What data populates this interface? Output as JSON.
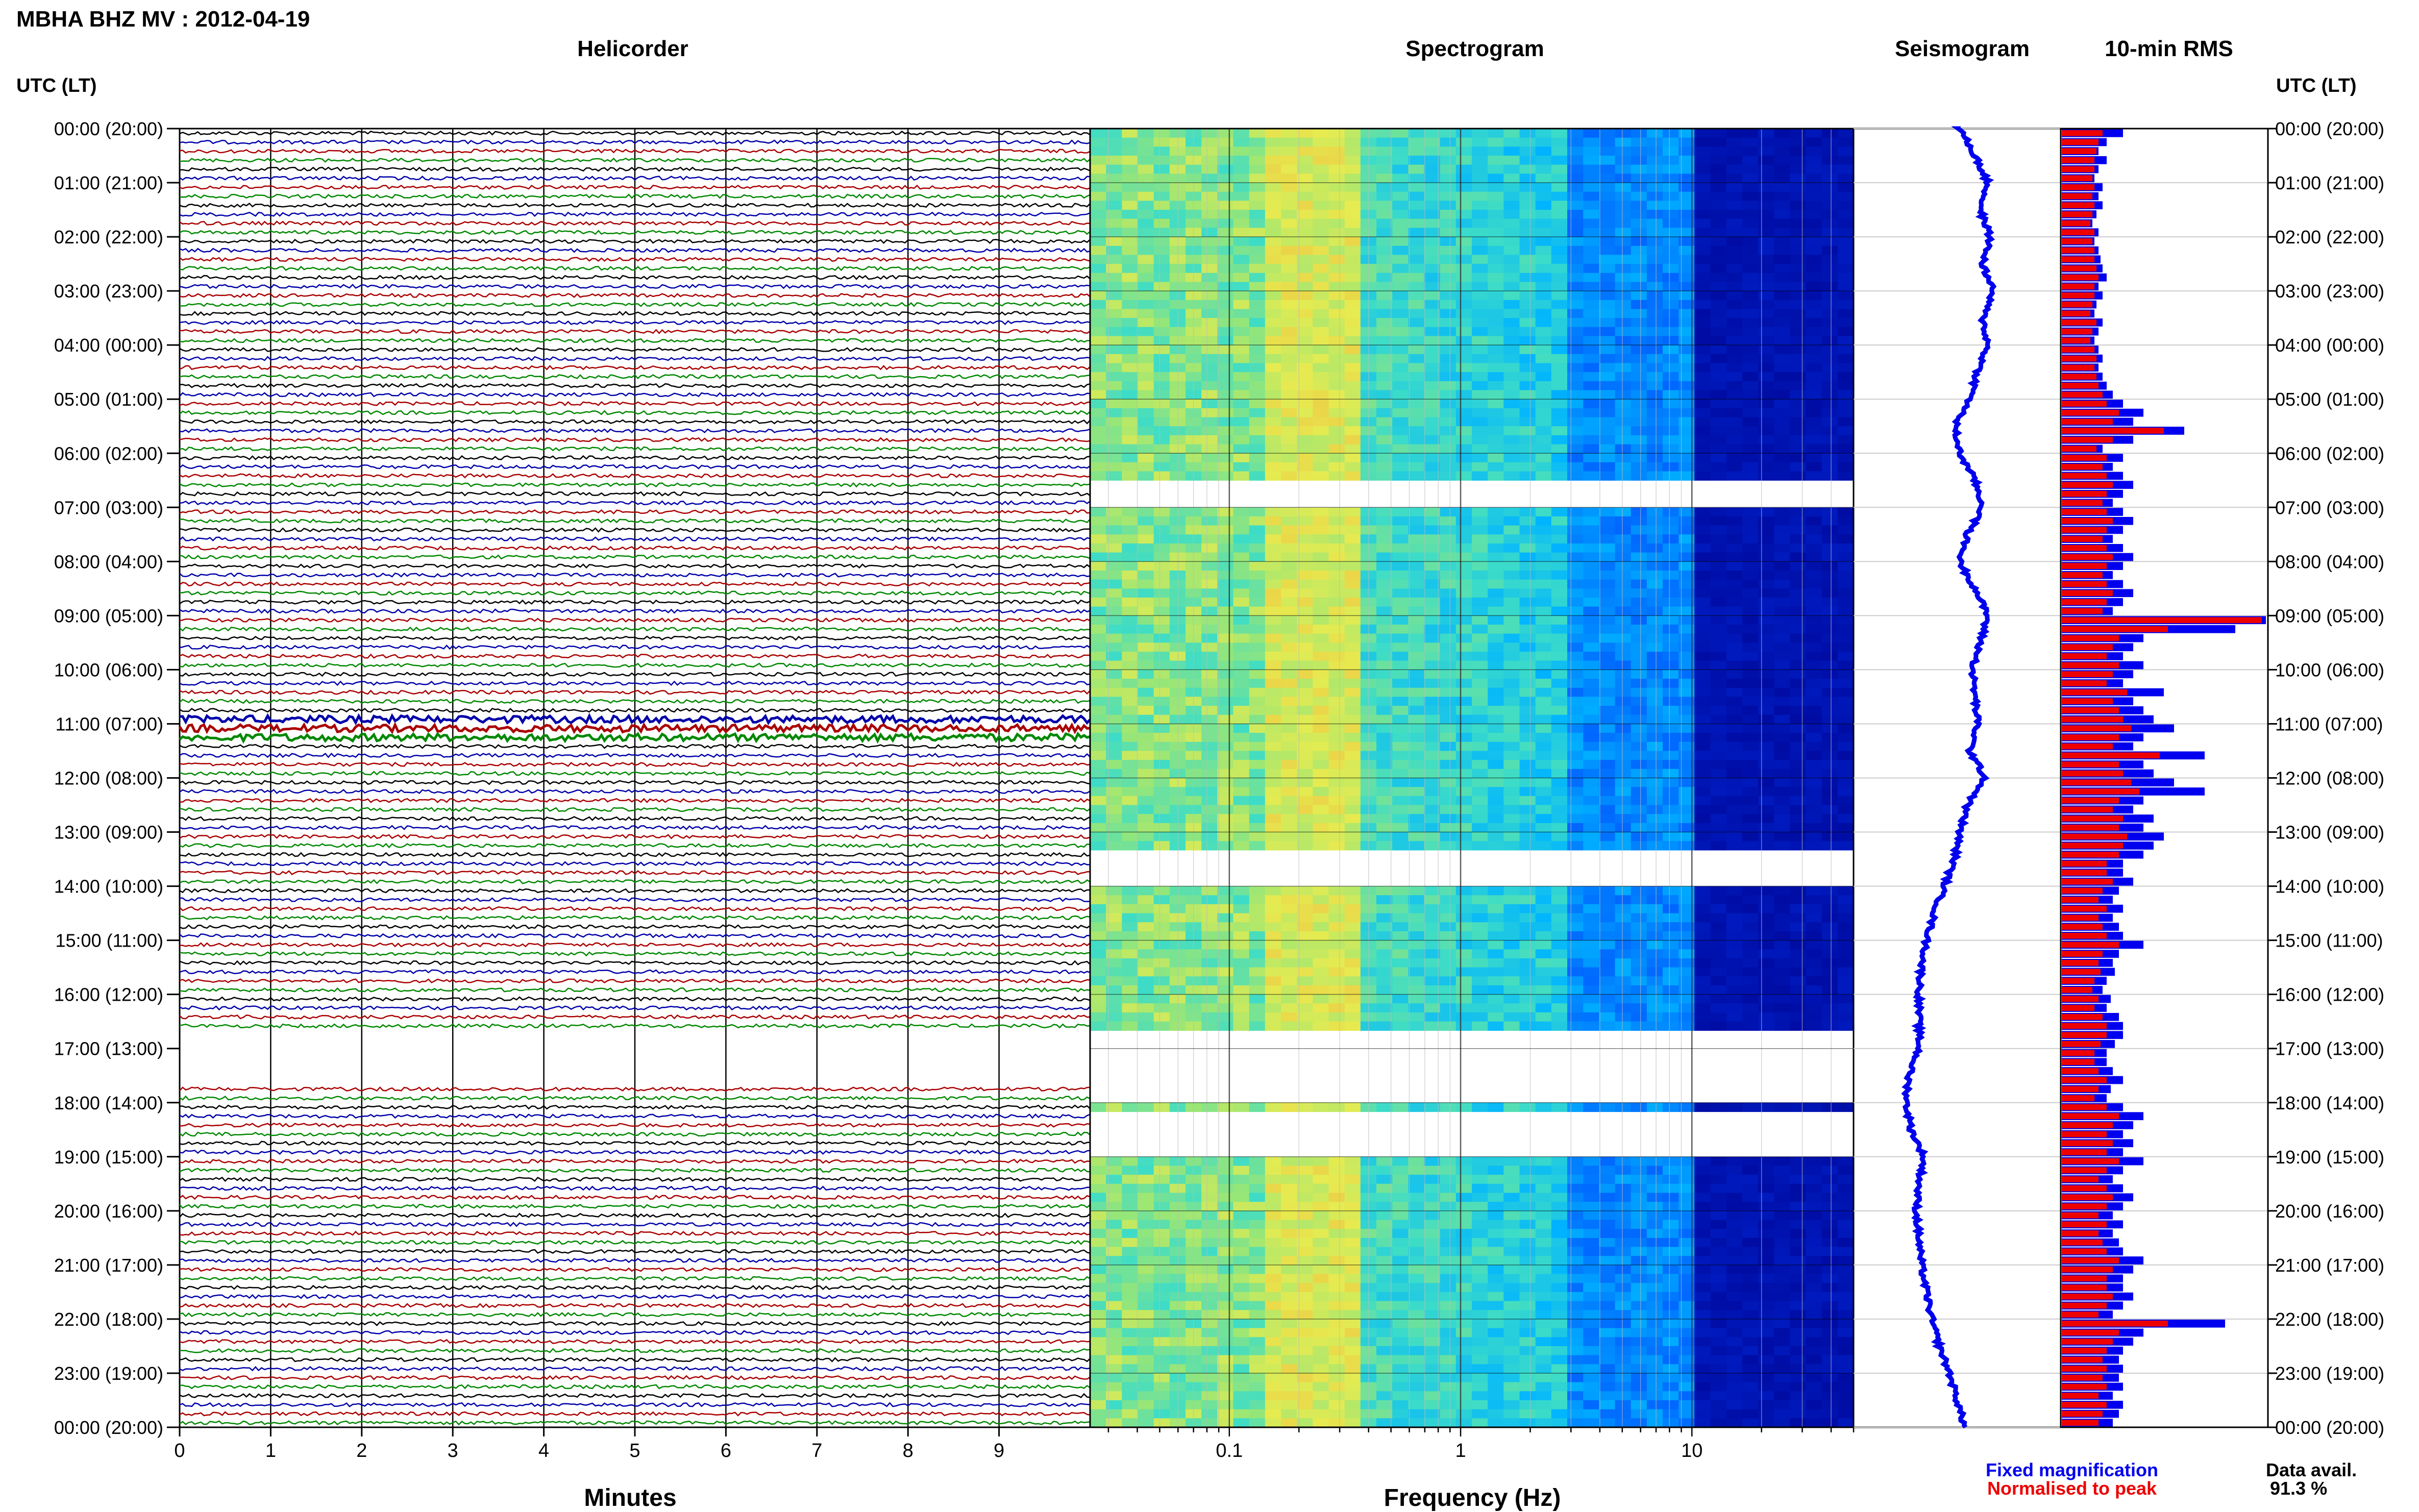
{
  "title": "MBHA BHZ MV : 2012-04-19",
  "panels": {
    "helicorder": {
      "title": "Helicorder",
      "xlabel": "Minutes",
      "xticks": [
        "0",
        "1",
        "2",
        "3",
        "4",
        "5",
        "6",
        "7",
        "8",
        "9"
      ]
    },
    "spectrogram": {
      "title": "Spectrogram",
      "xlabel": "Frequency (Hz)",
      "xticks": [
        "0.1",
        "1",
        "10"
      ],
      "x_scale": "log"
    },
    "seismogram": {
      "title": "Seismogram"
    },
    "rms": {
      "title": "10-min RMS"
    }
  },
  "time_axis": {
    "label": "UTC (LT)",
    "ticks": [
      "00:00 (20:00)",
      "01:00 (21:00)",
      "02:00 (22:00)",
      "03:00 (23:00)",
      "04:00 (00:00)",
      "05:00 (01:00)",
      "06:00 (02:00)",
      "07:00 (03:00)",
      "08:00 (04:00)",
      "09:00 (05:00)",
      "10:00 (06:00)",
      "11:00 (07:00)",
      "12:00 (08:00)",
      "13:00 (09:00)",
      "14:00 (10:00)",
      "15:00 (11:00)",
      "16:00 (12:00)",
      "17:00 (13:00)",
      "18:00 (14:00)",
      "19:00 (15:00)",
      "20:00 (16:00)",
      "21:00 (17:00)",
      "22:00 (18:00)",
      "23:00 (19:00)",
      "00:00 (20:00)"
    ]
  },
  "legend": {
    "fixed": "Fixed magnification",
    "normalised": "Normalised to peak",
    "fixed_color": "#0000ee",
    "normalised_color": "#ee0000",
    "availability_label": "Data avail.",
    "availability_value": "91.3 %"
  },
  "colors": {
    "trace_cycle": [
      "#000000",
      "#0000aa",
      "#aa0000",
      "#008800"
    ]
  },
  "chart_data": {
    "type": "heatmap",
    "helicorder_gaps_hours": [
      [
        16.6,
        17.6
      ]
    ],
    "spectrogram_gaps_hours": [
      [
        6.45,
        6.9
      ],
      [
        13.2,
        14.0
      ],
      [
        16.6,
        17.0
      ],
      [
        17.0,
        18.0
      ],
      [
        18.15,
        19.0
      ],
      [
        21.6,
        21.65
      ],
      [
        22.1,
        22.15
      ]
    ],
    "rms_10min": {
      "series": [
        {
          "name": "Fixed magnification",
          "values": [
            0.3,
            0.22,
            0.18,
            0.22,
            0.18,
            0.16,
            0.2,
            0.18,
            0.2,
            0.17,
            0.15,
            0.18,
            0.16,
            0.18,
            0.19,
            0.2,
            0.22,
            0.18,
            0.2,
            0.17,
            0.16,
            0.2,
            0.18,
            0.16,
            0.18,
            0.2,
            0.18,
            0.2,
            0.22,
            0.25,
            0.3,
            0.4,
            0.35,
            0.6,
            0.35,
            0.2,
            0.3,
            0.25,
            0.3,
            0.35,
            0.3,
            0.25,
            0.3,
            0.35,
            0.3,
            0.25,
            0.3,
            0.35,
            0.3,
            0.25,
            0.3,
            0.35,
            0.3,
            0.25,
            1.0,
            0.85,
            0.4,
            0.35,
            0.3,
            0.4,
            0.35,
            0.3,
            0.5,
            0.35,
            0.4,
            0.45,
            0.55,
            0.4,
            0.35,
            0.7,
            0.4,
            0.45,
            0.55,
            0.7,
            0.4,
            0.35,
            0.45,
            0.4,
            0.5,
            0.45,
            0.4,
            0.3,
            0.3,
            0.35,
            0.28,
            0.25,
            0.3,
            0.25,
            0.28,
            0.3,
            0.4,
            0.28,
            0.25,
            0.26,
            0.22,
            0.2,
            0.24,
            0.22,
            0.28,
            0.3,
            0.3,
            0.26,
            0.22,
            0.22,
            0.25,
            0.3,
            0.24,
            0.22,
            0.3,
            0.4,
            0.35,
            0.3,
            0.35,
            0.3,
            0.4,
            0.3,
            0.25,
            0.3,
            0.35,
            0.3,
            0.25,
            0.3,
            0.25,
            0.28,
            0.3,
            0.4,
            0.35,
            0.3,
            0.3,
            0.35,
            0.3,
            0.25,
            0.8,
            0.4,
            0.35,
            0.3,
            0.28,
            0.3,
            0.28,
            0.3,
            0.25,
            0.3,
            0.28,
            0.25
          ]
        },
        {
          "name": "Normalised to peak",
          "values": [
            0.2,
            0.18,
            0.17,
            0.16,
            0.16,
            0.15,
            0.16,
            0.15,
            0.16,
            0.15,
            0.14,
            0.16,
            0.15,
            0.16,
            0.16,
            0.17,
            0.18,
            0.16,
            0.16,
            0.15,
            0.14,
            0.17,
            0.15,
            0.14,
            0.16,
            0.17,
            0.16,
            0.17,
            0.18,
            0.2,
            0.22,
            0.28,
            0.25,
            0.5,
            0.25,
            0.17,
            0.22,
            0.2,
            0.22,
            0.25,
            0.22,
            0.2,
            0.22,
            0.25,
            0.22,
            0.2,
            0.22,
            0.25,
            0.22,
            0.2,
            0.22,
            0.25,
            0.22,
            0.2,
            0.98,
            0.52,
            0.28,
            0.25,
            0.22,
            0.28,
            0.25,
            0.22,
            0.32,
            0.25,
            0.28,
            0.3,
            0.34,
            0.28,
            0.25,
            0.48,
            0.28,
            0.3,
            0.34,
            0.38,
            0.28,
            0.25,
            0.3,
            0.28,
            0.32,
            0.3,
            0.28,
            0.22,
            0.22,
            0.25,
            0.2,
            0.18,
            0.22,
            0.18,
            0.2,
            0.22,
            0.28,
            0.2,
            0.18,
            0.19,
            0.16,
            0.15,
            0.18,
            0.16,
            0.2,
            0.22,
            0.22,
            0.19,
            0.16,
            0.16,
            0.18,
            0.22,
            0.18,
            0.16,
            0.22,
            0.28,
            0.25,
            0.22,
            0.25,
            0.22,
            0.28,
            0.22,
            0.18,
            0.22,
            0.25,
            0.22,
            0.18,
            0.22,
            0.18,
            0.2,
            0.22,
            0.28,
            0.25,
            0.22,
            0.22,
            0.25,
            0.22,
            0.18,
            0.52,
            0.28,
            0.25,
            0.22,
            0.2,
            0.22,
            0.2,
            0.22,
            0.18,
            0.22,
            0.2,
            0.18
          ]
        }
      ]
    }
  }
}
